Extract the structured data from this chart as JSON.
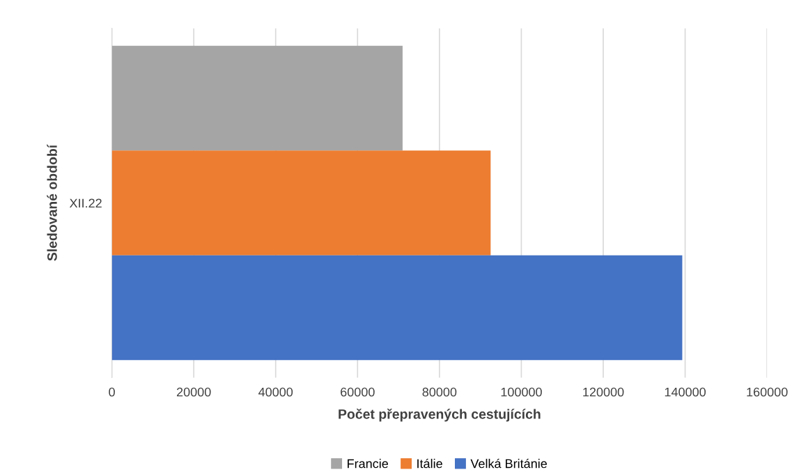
{
  "chart_data": {
    "type": "bar",
    "orientation": "horizontal",
    "xlabel": "Počet přepravených cestujících",
    "ylabel": "Sledované období",
    "categories": [
      "XII.22"
    ],
    "series": [
      {
        "name": "Francie",
        "color": "#a5a5a5",
        "values": [
          71000
        ]
      },
      {
        "name": "Itálie",
        "color": "#ed7d31",
        "values": [
          92500
        ]
      },
      {
        "name": "Velká Británie",
        "color": "#4472c4",
        "values": [
          139300
        ]
      }
    ],
    "xlim": [
      0,
      160000
    ],
    "xticks": [
      0,
      20000,
      40000,
      60000,
      80000,
      100000,
      120000,
      140000,
      160000
    ],
    "grid": "x",
    "legend": "bottom"
  }
}
